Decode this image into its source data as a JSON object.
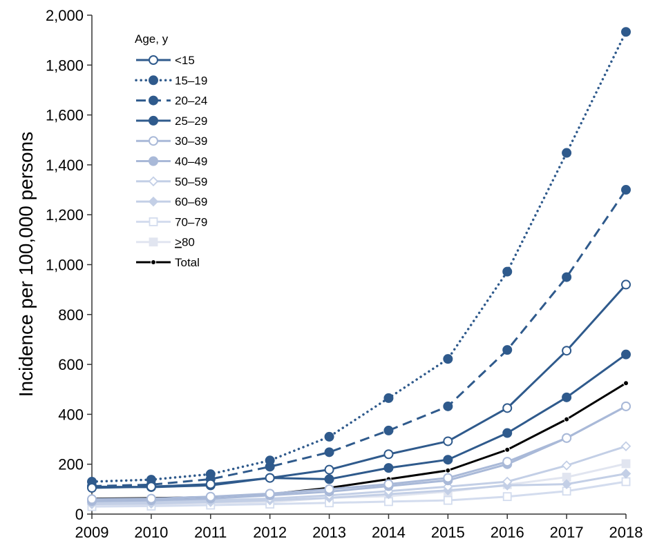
{
  "chart_data": {
    "type": "line",
    "title": "",
    "xlabel": "",
    "ylabel": "Incidence per 100,000 persons",
    "x": [
      2009,
      2010,
      2011,
      2012,
      2013,
      2014,
      2015,
      2016,
      2017,
      2018
    ],
    "x_tick_labels": [
      "2009",
      "2010",
      "2011",
      "2012",
      "2013",
      "2014",
      "2015",
      "2016",
      "2017",
      "2018"
    ],
    "ylim": [
      0,
      2000
    ],
    "y_ticks": [
      0,
      200,
      400,
      600,
      800,
      1000,
      1200,
      1400,
      1600,
      1800,
      2000
    ],
    "y_tick_labels": [
      "0",
      "200",
      "400",
      "600",
      "800",
      "1,000",
      "1,200",
      "1,400",
      "1,600",
      "1,800",
      "2,000"
    ],
    "grid": false,
    "legend": {
      "title": "Age, y",
      "position": "top-left"
    },
    "series": [
      {
        "name": "<15",
        "color": "#2f5a8c",
        "dash": "solid",
        "marker": "circle-open",
        "values": [
          105,
          110,
          120,
          145,
          178,
          240,
          292,
          425,
          655,
          920
        ]
      },
      {
        "name": "15–19",
        "color": "#2f5a8c",
        "dash": "dotted",
        "marker": "circle-filled",
        "values": [
          130,
          138,
          160,
          215,
          310,
          465,
          622,
          972,
          1448,
          1933
        ]
      },
      {
        "name": "20–24",
        "color": "#2f5a8c",
        "dash": "dashed",
        "marker": "circle-filled",
        "values": [
          112,
          118,
          140,
          190,
          248,
          335,
          432,
          658,
          950,
          1300
        ]
      },
      {
        "name": "25–29",
        "color": "#2f5a8c",
        "dash": "solid",
        "marker": "circle-filled",
        "values": [
          110,
          108,
          115,
          145,
          140,
          185,
          218,
          325,
          468,
          640
        ]
      },
      {
        "name": "30–39",
        "color": "#a9b9d8",
        "dash": "solid",
        "marker": "circle-open",
        "values": [
          60,
          62,
          70,
          82,
          100,
          120,
          145,
          210,
          305,
          432
        ]
      },
      {
        "name": "40–49",
        "color": "#a9b9d8",
        "dash": "solid",
        "marker": "circle-filled",
        "values": [
          52,
          55,
          62,
          75,
          90,
          112,
          135,
          200,
          305,
          432
        ]
      },
      {
        "name": "50–59",
        "color": "#c3cfe6",
        "dash": "solid",
        "marker": "diamond-open",
        "values": [
          45,
          48,
          55,
          62,
          75,
          92,
          110,
          130,
          195,
          272
        ]
      },
      {
        "name": "60–69",
        "color": "#c3cfe6",
        "dash": "solid",
        "marker": "diamond-filled",
        "values": [
          40,
          42,
          48,
          55,
          65,
          80,
          95,
          115,
          120,
          162
        ]
      },
      {
        "name": "70–79",
        "color": "#d3dcee",
        "dash": "solid",
        "marker": "square-open",
        "values": [
          30,
          32,
          36,
          40,
          45,
          50,
          55,
          70,
          92,
          130
        ]
      },
      {
        "name": ">80",
        "color": "#e1e5f0",
        "dash": "solid",
        "marker": "square-filled",
        "values": [
          35,
          38,
          45,
          48,
          65,
          72,
          90,
          118,
          148,
          202
        ]
      },
      {
        "name": "Total",
        "color": "#000000",
        "dash": "solid",
        "marker": "dot-small",
        "values": [
          62,
          64,
          68,
          80,
          105,
          140,
          175,
          258,
          380,
          525
        ]
      }
    ]
  }
}
